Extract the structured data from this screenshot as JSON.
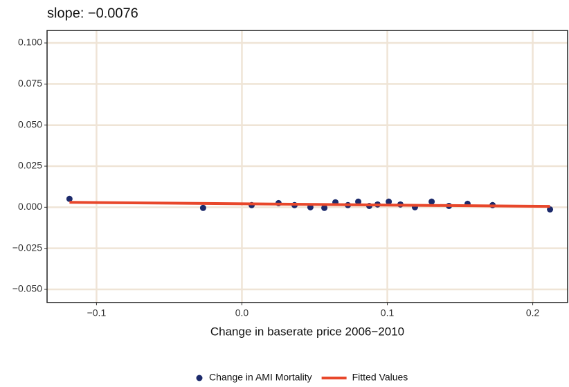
{
  "chart_data": {
    "type": "scatter",
    "title": "slope: −0.0076",
    "x_label": "Change in baserate price 2006−2010",
    "series": [
      {
        "name": "Change in AMI Mortality",
        "color": "#1c2a6b",
        "type": "scatter",
        "x": [
          -0.1186,
          -0.0267,
          0.0067,
          0.0252,
          0.0362,
          0.0471,
          0.0567,
          0.0643,
          0.0729,
          0.08,
          0.0876,
          0.0933,
          0.101,
          0.109,
          0.119,
          0.1305,
          0.1424,
          0.1552,
          0.1724,
          0.2119
        ],
        "values": [
          0.0051,
          -0.0004,
          0.0013,
          0.0025,
          0.0013,
          0.0,
          -0.0004,
          0.003,
          0.0013,
          0.0034,
          0.0008,
          0.0017,
          0.0034,
          0.0017,
          0.0,
          0.0034,
          0.0008,
          0.0021,
          0.0013,
          -0.0013
        ]
      },
      {
        "name": "Fitted Values",
        "color": "#e8472b",
        "type": "line",
        "x": [
          -0.1186,
          0.2119
        ],
        "values": [
          0.003,
          0.0005
        ]
      }
    ],
    "xlim": [
      -0.134,
      0.224
    ],
    "ylim": [
      -0.058,
      0.1076
    ],
    "xticks": [
      {
        "value": -0.1,
        "label": "−0.1"
      },
      {
        "value": 0,
        "label": "0.0"
      },
      0.1,
      0.2
    ],
    "yticks": [
      {
        "value": -0.05,
        "label": "−0.050"
      },
      {
        "value": -0.025,
        "label": "−0.025"
      },
      {
        "value": 0,
        "label": "0.000"
      },
      {
        "value": 0.025,
        "label": "0.025"
      },
      {
        "value": 0.05,
        "label": "0.050"
      },
      {
        "value": 0.075,
        "label": "0.075"
      },
      {
        "value": 0.1,
        "label": "0.100"
      }
    ],
    "grid": true,
    "grid_color": "#efe4d6",
    "legend": "bottom"
  }
}
